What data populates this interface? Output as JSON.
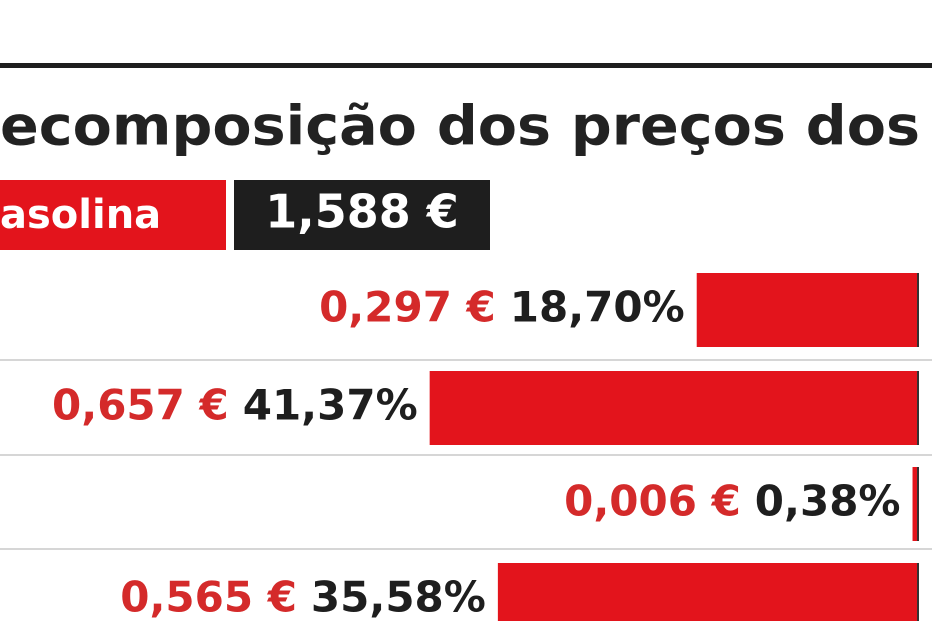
{
  "chart_data": {
    "type": "bar",
    "title": "ecomposição dos preços dos",
    "label": "asolina",
    "total": {
      "value": 1.588,
      "label": "1,588 €"
    },
    "values": [
      18.7,
      41.37,
      0.38,
      35.58
    ],
    "value_labels": [
      "18,70%",
      "41,37%",
      "0,38%",
      "35,58%"
    ],
    "amounts": [
      0.297,
      0.657,
      0.006,
      0.565
    ],
    "amount_labels": [
      "0,297 €",
      "0,657 €",
      "0,006 €",
      "0,565 €"
    ],
    "color": "#e3141c"
  }
}
